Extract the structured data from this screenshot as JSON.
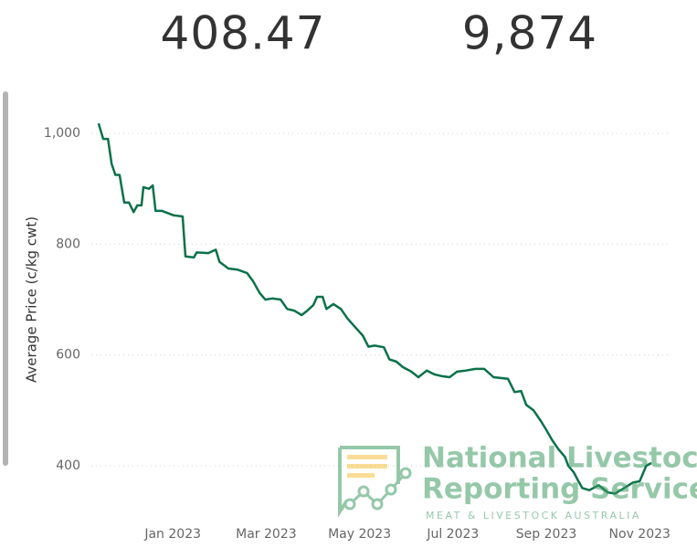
{
  "kpis": [
    "408.47",
    "9,874"
  ],
  "logo": {
    "title_line1": "National Livestock",
    "title_line2": "Reporting Service",
    "subtitle": "MEAT & LIVESTOCK AUSTRALIA"
  },
  "chart_data": {
    "type": "line",
    "ylabel": "Average Price (c/kg cwt)",
    "x": [
      -1.59,
      -1.49,
      -1.39,
      -1.31,
      -1.23,
      -1.14,
      -1.04,
      -0.94,
      -0.84,
      -0.76,
      -0.67,
      -0.63,
      -0.51,
      -0.43,
      -0.37,
      -0.23,
      0.02,
      0.21,
      0.27,
      0.45,
      0.51,
      0.76,
      0.92,
      1.0,
      1.19,
      1.39,
      1.59,
      1.72,
      1.86,
      1.98,
      2.13,
      2.31,
      2.45,
      2.6,
      2.76,
      2.88,
      3.01,
      3.09,
      3.21,
      3.29,
      3.44,
      3.6,
      3.74,
      3.91,
      4.07,
      4.19,
      4.32,
      4.52,
      4.64,
      4.79,
      4.93,
      5.11,
      5.26,
      5.44,
      5.6,
      5.75,
      5.93,
      6.09,
      6.28,
      6.48,
      6.67,
      6.87,
      7.18,
      7.32,
      7.46,
      7.57,
      7.73,
      7.89,
      8.0,
      8.12,
      8.26,
      8.4,
      8.47,
      8.59,
      8.67,
      8.77,
      8.92,
      9.12,
      9.32,
      9.47,
      9.67,
      9.86,
      10.0,
      10.14,
      10.25
    ],
    "series": [
      {
        "name": "Average Price",
        "color": "#0b7149",
        "values": [
          1018,
          990,
          990,
          945,
          925,
          925,
          875,
          875,
          858,
          870,
          870,
          903,
          900,
          906,
          860,
          860,
          852,
          850,
          778,
          776,
          785,
          784,
          790,
          768,
          756,
          754,
          748,
          733,
          712,
          700,
          702,
          700,
          683,
          680,
          672,
          680,
          690,
          705,
          705,
          683,
          692,
          683,
          666,
          650,
          635,
          615,
          617,
          614,
          592,
          588,
          578,
          570,
          560,
          572,
          565,
          562,
          560,
          570,
          572,
          575,
          575,
          560,
          557,
          533,
          535,
          510,
          500,
          480,
          465,
          447,
          430,
          416,
          400,
          388,
          375,
          360,
          356,
          365,
          352,
          350,
          360,
          370,
          372,
          400,
          405
        ]
      }
    ],
    "xlim": [
      -1.98,
      10.68
    ],
    "xticks": [
      {
        "value": 0,
        "label": "Jan 2023"
      },
      {
        "value": 2,
        "label": "Mar 2023"
      },
      {
        "value": 4,
        "label": "May 2023"
      },
      {
        "value": 6,
        "label": "Jul 2023"
      },
      {
        "value": 8,
        "label": "Sep 2023"
      },
      {
        "value": 10,
        "label": "Nov 2023"
      }
    ],
    "ylim": [
      300,
      1030
    ],
    "yticks": [
      400,
      600,
      800,
      {
        "value": 1000,
        "label": "1,000"
      }
    ],
    "grid": true
  }
}
